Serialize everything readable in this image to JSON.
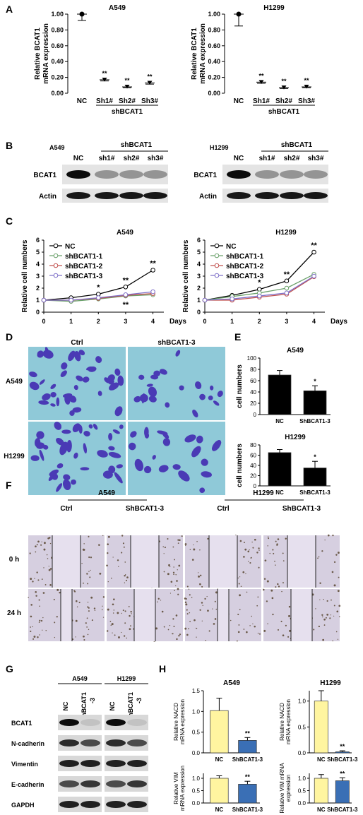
{
  "panels": {
    "A": "A",
    "B": "B",
    "C": "C",
    "D": "D",
    "E": "E",
    "F": "F",
    "G": "G",
    "H": "H"
  },
  "colors": {
    "nc_line": "#000000",
    "sh1_line": "#6aa06a",
    "sh2_line": "#c0504d",
    "sh3_line": "#7f70c8",
    "bar_black": "#000000",
    "bar_yellow": "#fff5a0",
    "bar_blue": "#3a6fb5",
    "stain": "#4a3ab5",
    "stain_bg": "#8fc9d8",
    "wound_bg": "#d6cfe0"
  },
  "chart_data": [
    {
      "panel": "A",
      "type": "scatter",
      "title": "A549",
      "ylabel_lines": [
        "Relative BCAT1",
        "mRNA expression"
      ],
      "categories": [
        "NC",
        "Sh1#",
        "Sh2#",
        "Sh3#"
      ],
      "values": [
        1.0,
        0.17,
        0.08,
        0.13
      ],
      "errors": [
        0.08,
        0.015,
        0.01,
        0.015
      ],
      "sig": [
        "",
        "**",
        "**",
        "**"
      ],
      "group_label": "shBCAT1",
      "ylim": [
        0,
        1.0
      ],
      "yticks": [
        "0.00",
        "0.20",
        "0.40",
        "0.60",
        "0.80",
        "1.00"
      ]
    },
    {
      "panel": "A",
      "type": "scatter",
      "title": "H1299",
      "ylabel_lines": [
        "Relative BCAT1",
        "mRNA expression"
      ],
      "categories": [
        "NC",
        "Sh1#",
        "Sh2#",
        "Sh3#"
      ],
      "values": [
        1.0,
        0.14,
        0.07,
        0.08
      ],
      "errors": [
        0.15,
        0.015,
        0.01,
        0.01
      ],
      "sig": [
        "",
        "**",
        "**",
        "**"
      ],
      "group_label": "shBCAT1",
      "ylim": [
        0,
        1.0
      ],
      "yticks": [
        "0.00",
        "0.20",
        "0.40",
        "0.60",
        "0.80",
        "1.00"
      ]
    },
    {
      "panel": "C",
      "type": "line",
      "title": "A549",
      "ylabel": "Relative cell numbers",
      "xlabel": "Days",
      "x": [
        0,
        1,
        2,
        3,
        4
      ],
      "ylim": [
        0,
        6
      ],
      "yticks": [
        0,
        1,
        2,
        3,
        4,
        5,
        6
      ],
      "series": [
        {
          "name": "NC",
          "values": [
            1.0,
            1.2,
            1.5,
            2.1,
            3.5
          ]
        },
        {
          "name": "shBCAT1-1",
          "values": [
            1.0,
            0.9,
            1.1,
            1.35,
            1.45
          ]
        },
        {
          "name": "shBCAT1-2",
          "values": [
            1.0,
            1.0,
            1.15,
            1.4,
            1.55
          ]
        },
        {
          "name": "shBCAT1-3",
          "values": [
            1.0,
            1.0,
            1.2,
            1.45,
            1.7
          ]
        }
      ],
      "annotations": [
        {
          "x": 2,
          "text": "*",
          "pos": "above"
        },
        {
          "x": 3,
          "text": "**",
          "pos": "above"
        },
        {
          "x": 4,
          "text": "**",
          "pos": "above"
        },
        {
          "x": 3,
          "text": "**",
          "pos": "below"
        }
      ]
    },
    {
      "panel": "C",
      "type": "line",
      "title": "H1299",
      "ylabel": "Relative cell numbers",
      "xlabel": "Days",
      "x": [
        0,
        1,
        2,
        3,
        4
      ],
      "ylim": [
        0,
        6
      ],
      "yticks": [
        0,
        1,
        2,
        3,
        4,
        5,
        6
      ],
      "series": [
        {
          "name": "NC",
          "values": [
            1.0,
            1.4,
            1.9,
            2.6,
            5.0
          ]
        },
        {
          "name": "shBCAT1-1",
          "values": [
            1.0,
            1.3,
            1.6,
            2.0,
            3.15
          ]
        },
        {
          "name": "shBCAT1-2",
          "values": [
            1.0,
            1.0,
            1.25,
            1.5,
            2.95
          ]
        },
        {
          "name": "shBCAT1-3",
          "values": [
            1.0,
            1.1,
            1.35,
            1.6,
            3.0
          ]
        }
      ],
      "annotations": [
        {
          "x": 2,
          "text": "*",
          "pos": "above"
        },
        {
          "x": 3,
          "text": "**",
          "pos": "above"
        },
        {
          "x": 4,
          "text": "**",
          "pos": "above"
        }
      ]
    },
    {
      "panel": "E",
      "type": "bar",
      "title": "A549",
      "ylabel": "cell numbers",
      "categories": [
        "NC",
        "ShBCAT1-3"
      ],
      "values": [
        70,
        42
      ],
      "errors": [
        8,
        9
      ],
      "sig": [
        "",
        "*"
      ],
      "ylim": [
        0,
        100
      ],
      "yticks": [
        0,
        20,
        40,
        60,
        80,
        100
      ]
    },
    {
      "panel": "E",
      "type": "bar",
      "title": "H1299",
      "ylabel": "cell numbers",
      "categories": [
        "NC",
        "ShBCAT1-3"
      ],
      "values": [
        65,
        35
      ],
      "errors": [
        6,
        13
      ],
      "sig": [
        "",
        "*"
      ],
      "ylim": [
        0,
        80
      ],
      "yticks": [
        0,
        20,
        40,
        60,
        80
      ]
    },
    {
      "panel": "H",
      "type": "bar",
      "title": "A549",
      "ylabel_lines": [
        "Relative NACD",
        "mRNA expression"
      ],
      "categories": [
        "NC",
        "ShBCAT1-3"
      ],
      "values": [
        1.02,
        0.3
      ],
      "errors": [
        0.3,
        0.07
      ],
      "sig": [
        "",
        "**"
      ],
      "ylim": [
        0,
        1.5
      ],
      "yticks": [
        "0.0",
        "0.5",
        "1.0",
        "1.5"
      ]
    },
    {
      "panel": "H",
      "type": "bar",
      "title": "H1299",
      "ylabel_lines": [
        "Relative NACD",
        "mRNA expression"
      ],
      "categories": [
        "NC",
        "ShBCAT1-3"
      ],
      "values": [
        1.0,
        0.02
      ],
      "errors": [
        0.2,
        0.02
      ],
      "sig": [
        "",
        "**"
      ],
      "ylim": [
        0,
        1.2
      ],
      "yticks": [
        "0.0",
        "0.5",
        "1.0"
      ]
    },
    {
      "panel": "H",
      "type": "bar",
      "title": "",
      "ylabel_lines": [
        "Relative VIM",
        "mRNA expression"
      ],
      "categories": [
        "NC",
        "ShBCAT1-3"
      ],
      "values": [
        1.0,
        0.76
      ],
      "errors": [
        0.1,
        0.12
      ],
      "sig": [
        "",
        "**"
      ],
      "ylim": [
        0,
        1.2
      ],
      "yticks": [
        "0.0",
        "0.5",
        "1.0"
      ]
    },
    {
      "panel": "H",
      "type": "bar",
      "title": "",
      "ylabel_lines": [
        "Relative VIM mRNA",
        "expression"
      ],
      "categories": [
        "NC",
        "ShBCAT1-3"
      ],
      "values": [
        1.0,
        0.9
      ],
      "errors": [
        0.15,
        0.12
      ],
      "sig": [
        "",
        "**"
      ],
      "ylim": [
        0,
        1.2
      ],
      "yticks": [
        "0.0",
        "0.5",
        "1.0"
      ]
    }
  ],
  "blotB": [
    {
      "cell": "A549",
      "group": "shBCAT1",
      "lanes": [
        "NC",
        "sh1#",
        "sh2#",
        "sh3#"
      ],
      "rows": [
        "BCAT1",
        "Actin"
      ]
    },
    {
      "cell": "H1299",
      "group": "shBCAT1",
      "lanes": [
        "NC",
        "sh1#",
        "sh2#",
        "sh3#"
      ],
      "rows": [
        "BCAT1",
        "Actin"
      ]
    }
  ],
  "panelD": {
    "cols": [
      "Ctrl",
      "shBCAT1-3"
    ],
    "rows": [
      "A549",
      "H1299"
    ]
  },
  "panelF": {
    "cells": [
      "A549",
      "H1299"
    ],
    "conds": [
      "Ctrl",
      "ShBCAT1-3",
      "Ctrl",
      "ShBCAT1-3"
    ],
    "times": [
      "0 h",
      "24 h"
    ]
  },
  "panelG": {
    "cells": [
      "A549",
      "H1299"
    ],
    "lanes": [
      "NC",
      "shBCAT1",
      "-3"
    ],
    "rows": [
      "BCAT1",
      "N-cadherin",
      "Vimentin",
      "E-cadherin",
      "GAPDH"
    ]
  }
}
